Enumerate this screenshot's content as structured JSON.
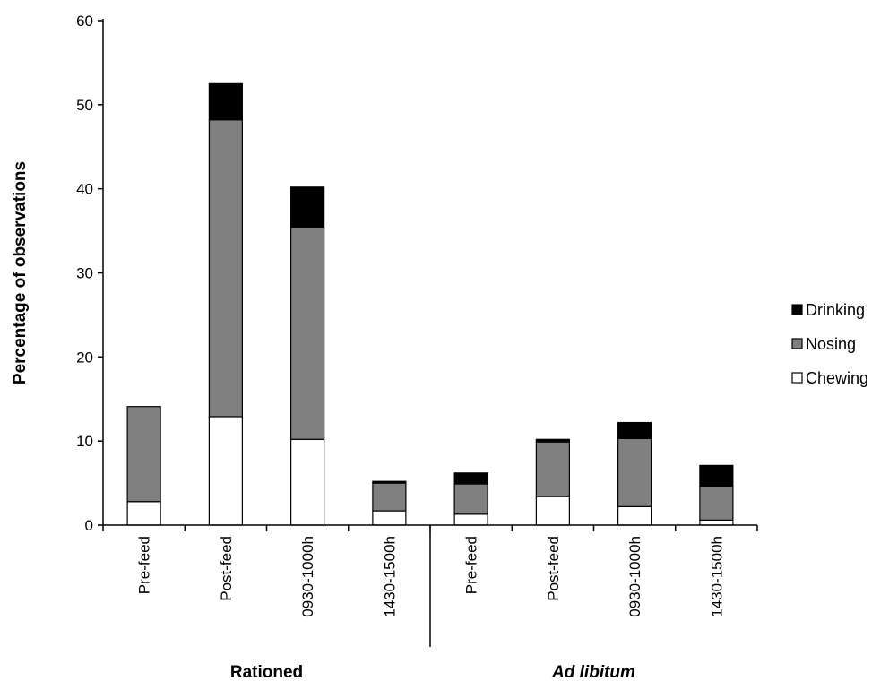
{
  "chart_data": {
    "type": "bar",
    "stacked": true,
    "title": "",
    "xlabel": "",
    "ylabel": "Percentage of observations",
    "ylim": [
      0,
      60
    ],
    "yticks": [
      0,
      10,
      20,
      30,
      40,
      50,
      60
    ],
    "grid": false,
    "legend_position": "right",
    "categories": [
      "Pre-feed",
      "Post-feed",
      "0930-1000h",
      "1430-1500h",
      "Pre-feed",
      "Post-feed",
      "0930-1000h",
      "1430-1500h"
    ],
    "groups": [
      {
        "label": "Rationed",
        "italic": false,
        "members": [
          0,
          1,
          2,
          3
        ]
      },
      {
        "label": "Ad libitum",
        "italic": true,
        "members": [
          4,
          5,
          6,
          7
        ]
      }
    ],
    "series": [
      {
        "name": "Chewing",
        "color": "#ffffff",
        "values": [
          2.8,
          12.9,
          10.2,
          1.7,
          1.3,
          3.4,
          2.2,
          0.6
        ]
      },
      {
        "name": "Nosing",
        "color": "#808080",
        "values": [
          11.3,
          35.3,
          25.2,
          3.3,
          3.6,
          6.5,
          8.1,
          4.0
        ]
      },
      {
        "name": "Drinking",
        "color": "#000000",
        "values": [
          0.0,
          4.3,
          4.8,
          0.2,
          1.3,
          0.3,
          1.9,
          2.5
        ]
      }
    ]
  }
}
